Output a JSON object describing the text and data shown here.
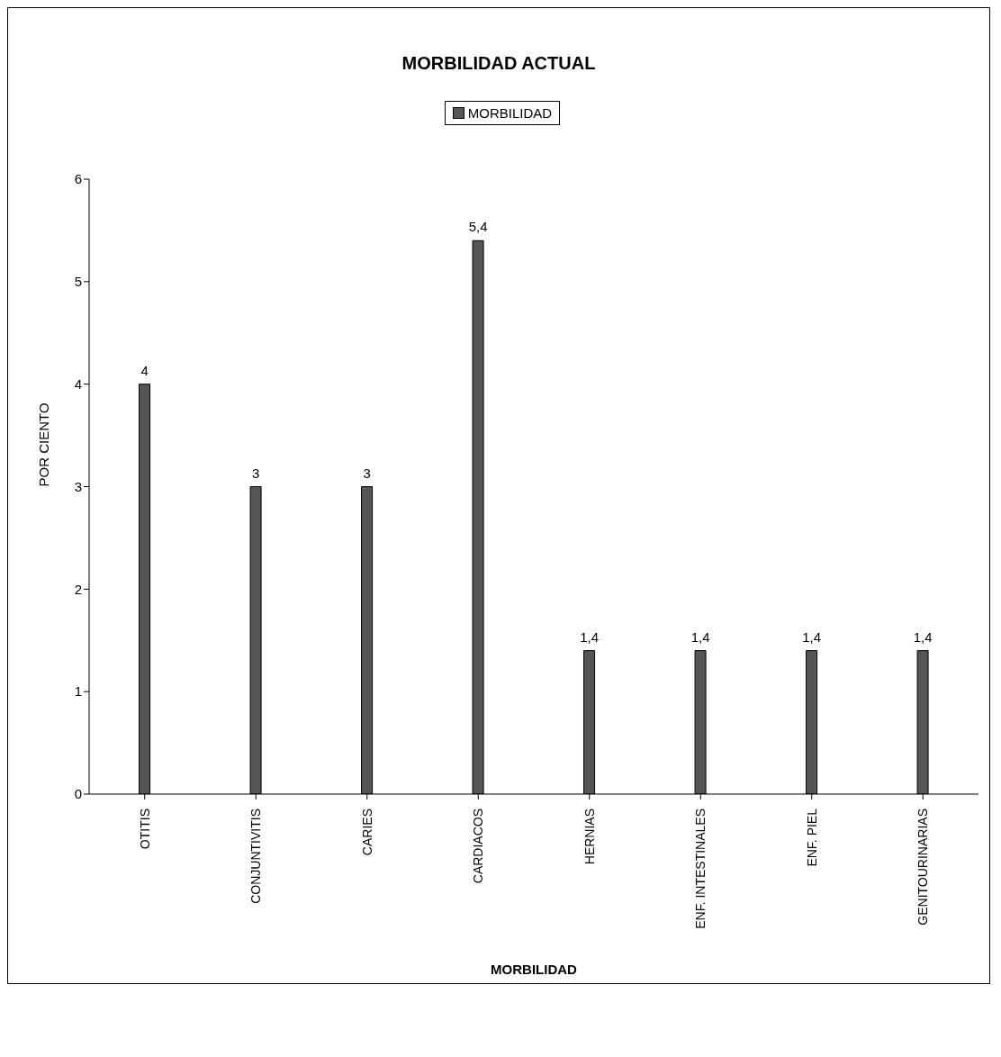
{
  "chart_data": {
    "type": "bar",
    "title": "MORBILIDAD ACTUAL",
    "xlabel": "MORBILIDAD",
    "ylabel": "POR CIENTO",
    "categories": [
      "OTITIS",
      "CONJUNTIVITIS",
      "CARIES",
      "CARDIACOS",
      "HERNIAS",
      "ENF. INTESTINALES",
      "ENF. PIEL",
      "GENITOURINARIAS"
    ],
    "series": [
      {
        "name": "MORBILIDAD",
        "color": "#555555",
        "values": [
          4,
          3,
          3,
          5.4,
          1.4,
          1.4,
          1.4,
          1.4
        ],
        "value_labels": [
          "4",
          "3",
          "3",
          "5,4",
          "1,4",
          "1,4",
          "1,4",
          "1,4"
        ]
      }
    ],
    "ylim": [
      0,
      6
    ],
    "yticks": [
      0,
      1,
      2,
      3,
      4,
      5,
      6
    ],
    "grid": false,
    "legend": "top"
  }
}
